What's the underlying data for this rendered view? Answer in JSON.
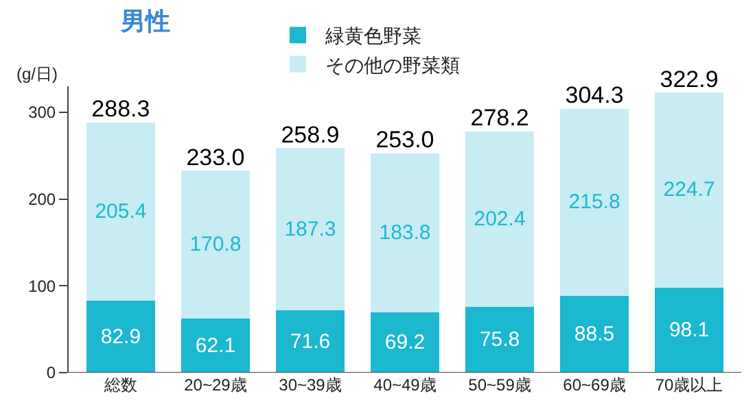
{
  "chart_data": {
    "type": "bar",
    "title": "男性",
    "ylabel": "(g/日)",
    "categories": [
      "総数",
      "20~29歳",
      "30~39歳",
      "40~49歳",
      "50~59歳",
      "60~69歳",
      "70歳以上"
    ],
    "series": [
      {
        "name": "緑黄色野菜",
        "color": "#1bb8d0",
        "values": [
          82.9,
          62.1,
          71.6,
          69.2,
          75.8,
          88.5,
          98.1
        ]
      },
      {
        "name": "その他の野菜類",
        "color": "#c8ecf3",
        "values": [
          205.4,
          170.8,
          187.3,
          183.8,
          202.4,
          215.8,
          224.7
        ]
      }
    ],
    "stacked": true,
    "data_labels": true,
    "totals": [
      "288.3",
      "233.0",
      "258.9",
      "253.0",
      "278.2",
      "304.3",
      "322.9"
    ],
    "ylim": [
      0,
      330
    ],
    "yticks": [
      0,
      100,
      200,
      300
    ],
    "legend": "top"
  }
}
